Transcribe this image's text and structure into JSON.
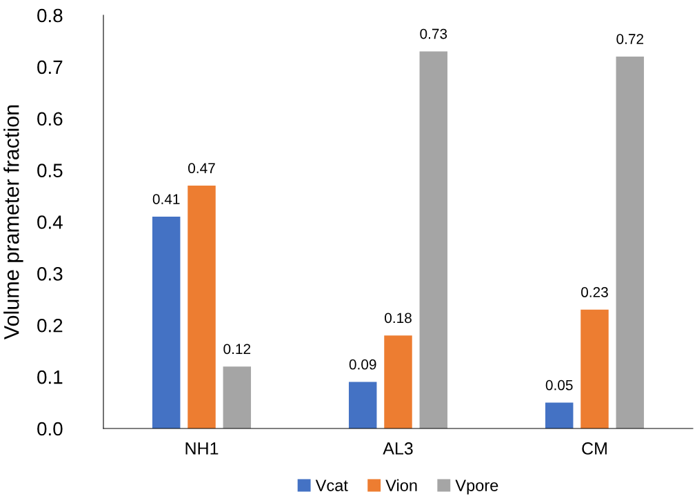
{
  "chart_data": {
    "type": "bar",
    "ylabel": "Volume prameter fraction",
    "categories": [
      "NH1",
      "AL3",
      "CM"
    ],
    "series": [
      {
        "name": "Vcat",
        "color": "#4472c4",
        "values": [
          0.41,
          0.09,
          0.05
        ]
      },
      {
        "name": "Vion",
        "color": "#ed7d31",
        "values": [
          0.47,
          0.18,
          0.23
        ]
      },
      {
        "name": "Vpore",
        "color": "#a5a5a5",
        "values": [
          0.12,
          0.73,
          0.72
        ]
      }
    ],
    "ylim": [
      0,
      0.8
    ],
    "yticks": [
      {
        "value": 0,
        "label": "0.0"
      },
      0.1,
      0.2,
      0.3,
      0.4,
      0.5,
      0.6,
      0.7,
      0.8
    ],
    "data_labels": true,
    "grid": false,
    "legend": "bottom"
  }
}
